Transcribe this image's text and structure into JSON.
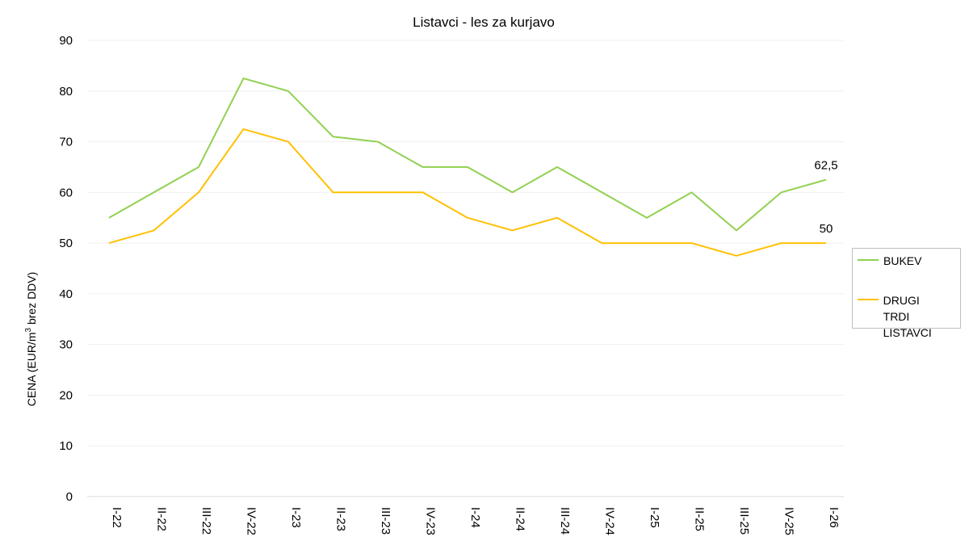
{
  "chart_data": {
    "type": "line",
    "title": "Listavci - les za kurjavo",
    "ylabel_parts": [
      "CENA (EUR/m",
      "3",
      " brez DDV)"
    ],
    "xlabel": "",
    "ylim": [
      0,
      90
    ],
    "yticks": [
      0,
      10,
      20,
      30,
      40,
      50,
      60,
      70,
      80,
      90
    ],
    "categories": [
      "I-22",
      "II-22",
      "III-22",
      "IV-22",
      "I-23",
      "II-23",
      "III-23",
      "IV-23",
      "I-24",
      "II-24",
      "III-24",
      "IV-24",
      "I-25",
      "II-25",
      "III-25",
      "IV-25",
      "I-26"
    ],
    "series": [
      {
        "name": "BUKEV",
        "color": "#92d050",
        "values": [
          55,
          60,
          65,
          82.5,
          80,
          71,
          70,
          65,
          65,
          60,
          65,
          60,
          55,
          60,
          52.5,
          60,
          62.5
        ],
        "last_label": "62,5"
      },
      {
        "name": "DRUGI TRDI LISTAVCI",
        "color": "#ffc000",
        "legend_lines": [
          "DRUGI",
          "TRDI LISTAVCI"
        ],
        "values": [
          50,
          52.5,
          60,
          72.5,
          70,
          60,
          60,
          60,
          55,
          52.5,
          55,
          50,
          50,
          50,
          47.5,
          50,
          50
        ],
        "last_label": "50"
      }
    ],
    "grid": true,
    "legend_position": "right"
  }
}
